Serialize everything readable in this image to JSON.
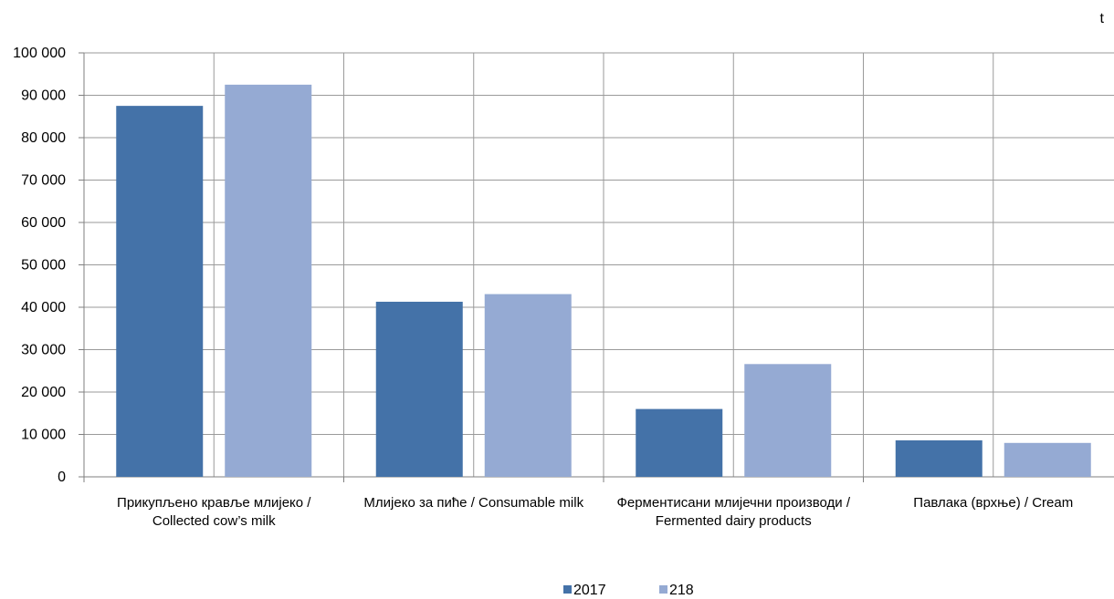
{
  "chart_data": {
    "type": "bar",
    "unit": "t",
    "categories": [
      "Прикупљено кравље млијеко / Collected cow’s milk",
      "Млијеко за пиће / Consumable milk",
      "Ферментисани млијечни производи / Fermented dairy products",
      "Павлака (врхње) / Cream"
    ],
    "series": [
      {
        "name": "2017",
        "color": "#4472a8",
        "values": [
          87500,
          41300,
          16000,
          8600
        ]
      },
      {
        "name": "218",
        "color": "#95aad3",
        "values": [
          92500,
          43100,
          26600,
          8000
        ]
      }
    ],
    "ylim": [
      0,
      100000
    ],
    "yticks": [
      0,
      10000,
      20000,
      30000,
      40000,
      50000,
      60000,
      70000,
      80000,
      90000,
      100000
    ],
    "ytick_labels": [
      "0",
      "10 000",
      "20 000",
      "30 000",
      "40 000",
      "50 000",
      "60 000",
      "70 000",
      "80 000",
      "90 000",
      "100 000"
    ],
    "grid": true,
    "legend_position": "bottom"
  }
}
